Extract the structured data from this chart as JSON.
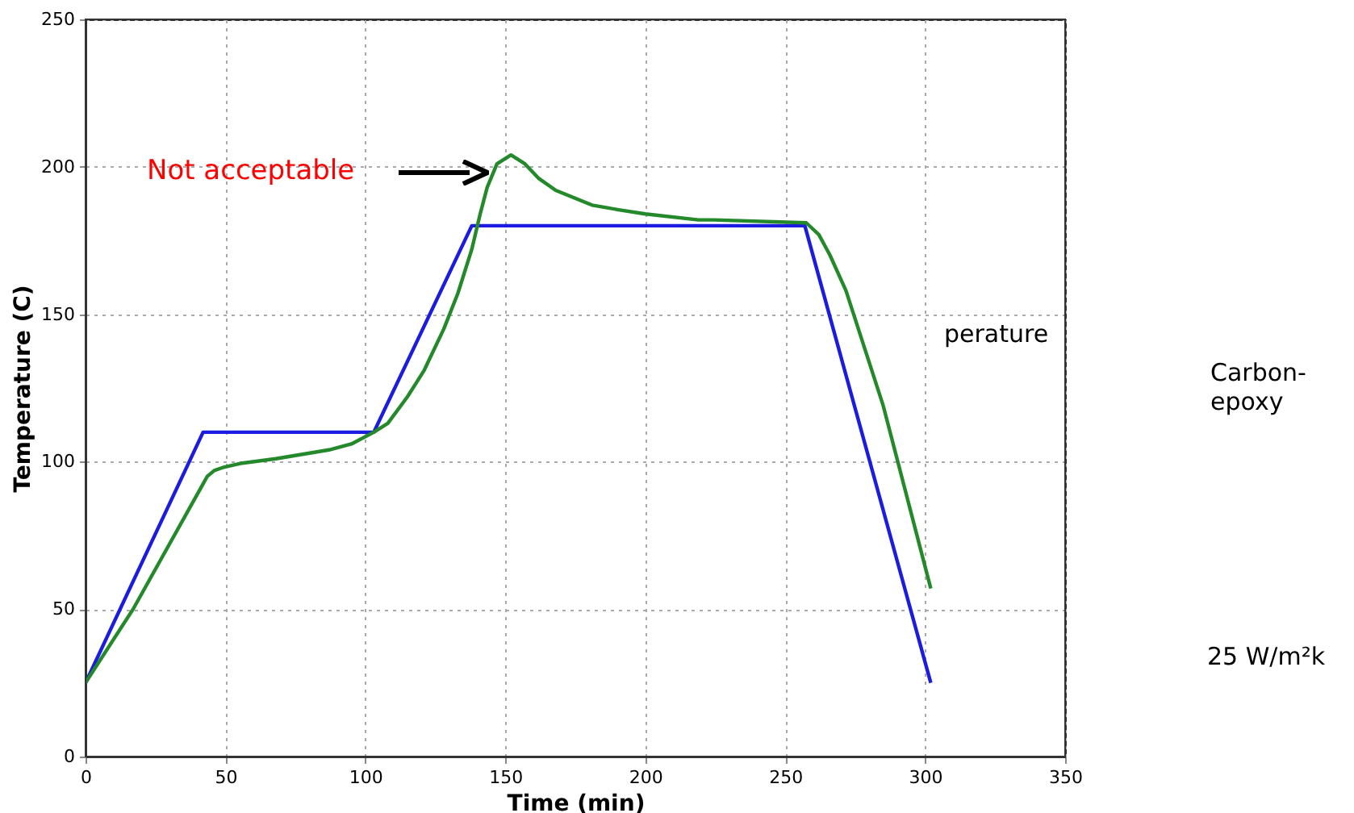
{
  "chart_data": {
    "type": "line",
    "xlabel": "Time (min)",
    "ylabel": "Temperature (C)",
    "xlim": [
      0,
      350
    ],
    "xticks": [
      0,
      50,
      100,
      150,
      200,
      250,
      300,
      350
    ],
    "ylim": [
      0,
      250
    ],
    "yticks": [
      0,
      50,
      100,
      150,
      200,
      250
    ],
    "grid": true,
    "line_style": "solid",
    "series": [
      {
        "color": "#1c1ce0",
        "x": [
          0,
          42,
          103,
          138,
          257,
          302
        ],
        "values": [
          25,
          110,
          110,
          180,
          180,
          25
        ]
      },
      {
        "color": "#23892a",
        "x": [
          0,
          17,
          43.5,
          46,
          49,
          56,
          68,
          87,
          95,
          103,
          108,
          115,
          121,
          128,
          133,
          138,
          141,
          143.5,
          147,
          152,
          157,
          162,
          168,
          181,
          190,
          200,
          219,
          224.5,
          257.5,
          262,
          266,
          271.7,
          285,
          302
        ],
        "values": [
          25,
          50,
          95,
          97,
          98,
          99.5,
          101,
          104,
          106,
          110,
          113,
          122,
          131,
          145,
          157,
          172,
          184,
          193,
          201,
          204,
          201,
          196,
          192,
          187,
          185.5,
          184,
          182,
          182,
          181,
          177,
          170,
          158,
          119,
          57
        ]
      }
    ],
    "annotations": [
      "Not acceptable",
      "perature",
      "Carbon-epoxy",
      "25 W/m²k"
    ]
  }
}
